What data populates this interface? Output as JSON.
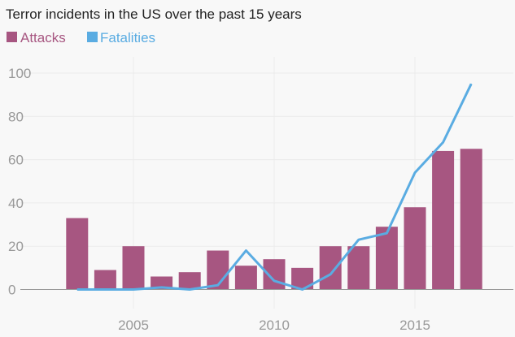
{
  "chart_data": {
    "type": "bar",
    "title": "Terror incidents in the US over the past 15 years",
    "x": [
      2003,
      2004,
      2005,
      2006,
      2007,
      2008,
      2009,
      2010,
      2011,
      2012,
      2013,
      2014,
      2015,
      2016,
      2017
    ],
    "series": [
      {
        "name": "Attacks",
        "type": "bar",
        "color": "#a75681",
        "values": [
          33,
          9,
          20,
          6,
          8,
          18,
          11,
          14,
          10,
          20,
          20,
          29,
          38,
          64,
          65
        ]
      },
      {
        "name": "Fatalities",
        "type": "line",
        "color": "#5aace2",
        "values": [
          0,
          0,
          0,
          1,
          0,
          2,
          18,
          4,
          0,
          7,
          23,
          26,
          54,
          68,
          95
        ]
      }
    ],
    "xticks": [
      "2005",
      "2010",
      "2015"
    ],
    "yticks": [
      "0",
      "20",
      "40",
      "60",
      "80",
      "100"
    ],
    "ylim": [
      0,
      100
    ],
    "xlabel": "",
    "ylabel": "",
    "grid": true,
    "legend": "top-left"
  }
}
